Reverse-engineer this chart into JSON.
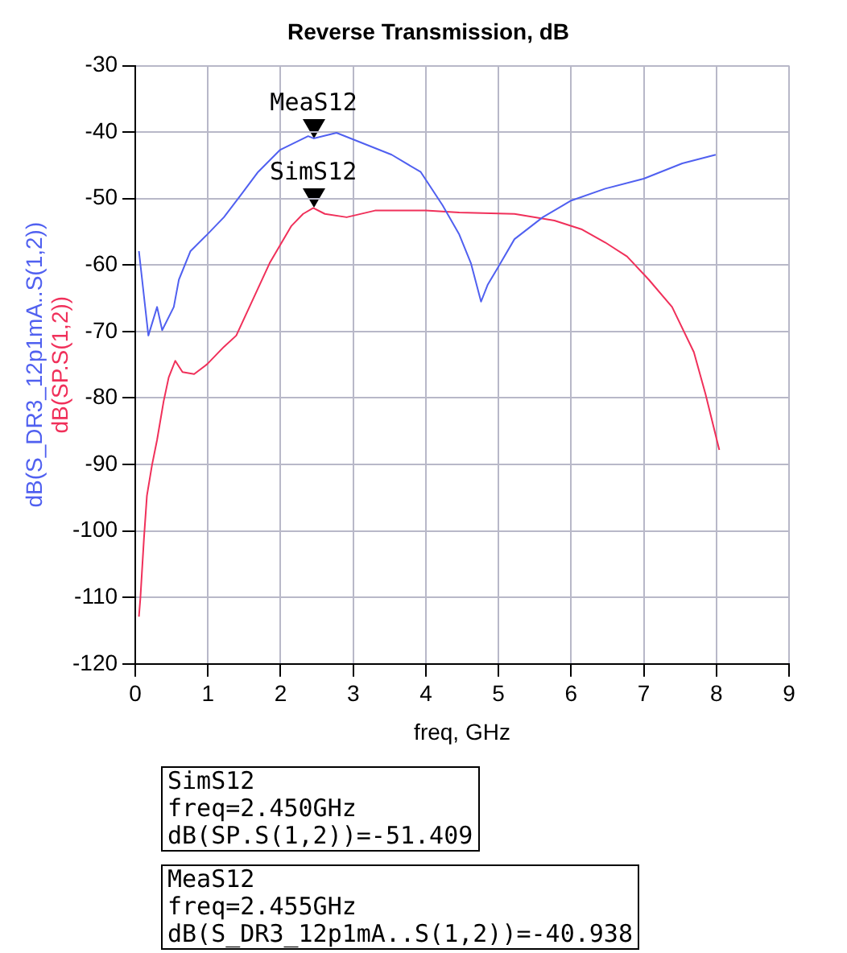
{
  "chart_data": {
    "type": "line",
    "title": "Reverse Transmission, dB",
    "xlabel": "freq, GHz",
    "xlim": [
      0,
      9
    ],
    "xticks": [
      0,
      1,
      2,
      3,
      4,
      5,
      6,
      7,
      8,
      9
    ],
    "ylim": [
      -120,
      -30
    ],
    "yticks": [
      -120,
      -110,
      -100,
      -90,
      -80,
      -70,
      -60,
      -50,
      -40,
      -30
    ],
    "grid": true,
    "legend": false,
    "marker": "none",
    "line_style": "solid",
    "series": [
      {
        "name": "dB(S_DR3_12p1mA..S(1,2))",
        "color": "#5060f0",
        "x": [
          0.05,
          0.18,
          0.3,
          0.37,
          0.53,
          0.6,
          0.76,
          0.99,
          1.22,
          1.45,
          1.69,
          1.99,
          2.38,
          2.455,
          2.77,
          3.07,
          3.53,
          3.93,
          4.23,
          4.46,
          4.62,
          4.76,
          4.85,
          4.99,
          5.22,
          5.61,
          6.0,
          6.47,
          7.0,
          7.53,
          7.99
        ],
        "values": [
          -57.9,
          -70.6,
          -66.3,
          -69.8,
          -66.3,
          -62.2,
          -57.9,
          -55.4,
          -52.8,
          -49.5,
          -46,
          -42.7,
          -40.6,
          -40.938,
          -40.1,
          -41.4,
          -43.4,
          -46,
          -51,
          -55.4,
          -59.7,
          -65.5,
          -63,
          -60.4,
          -56.1,
          -52.8,
          -50.3,
          -48.5,
          -47,
          -44.7,
          -43.4
        ]
      },
      {
        "name": "dB(SP.S(1,2))",
        "color": "#f0305a",
        "x": [
          0.05,
          0.07,
          0.12,
          0.16,
          0.23,
          0.3,
          0.39,
          0.46,
          0.55,
          0.65,
          0.81,
          0.99,
          1.22,
          1.39,
          1.85,
          2.15,
          2.31,
          2.45,
          2.61,
          2.91,
          3.3,
          4.0,
          4.46,
          5.22,
          5.77,
          6.14,
          6.47,
          6.77,
          7.07,
          7.39,
          7.69,
          7.85,
          8.04
        ],
        "values": [
          -112.9,
          -110.1,
          -101,
          -94.7,
          -90.1,
          -86.3,
          -80.5,
          -76.9,
          -74.4,
          -76.1,
          -76.4,
          -74.9,
          -72.3,
          -70.6,
          -59.7,
          -54.1,
          -52.3,
          -51.409,
          -52.3,
          -52.8,
          -51.8,
          -51.8,
          -52.1,
          -52.3,
          -53.3,
          -54.6,
          -56.6,
          -58.7,
          -62.2,
          -66.3,
          -73.1,
          -79.4,
          -87.8
        ]
      }
    ],
    "annotations": [
      {
        "text": "MeaS12",
        "x": 2.455,
        "y": -40.938
      },
      {
        "text": "SimS12",
        "x": 2.45,
        "y": -51.409
      },
      "SimS12\nfreq=2.450GHz\ndB(SP.S(1,2))=-51.409",
      "MeaS12\nfreq=2.455GHz\ndB(S_DR3_12p1mA..S(1,2))=-40.938"
    ]
  }
}
